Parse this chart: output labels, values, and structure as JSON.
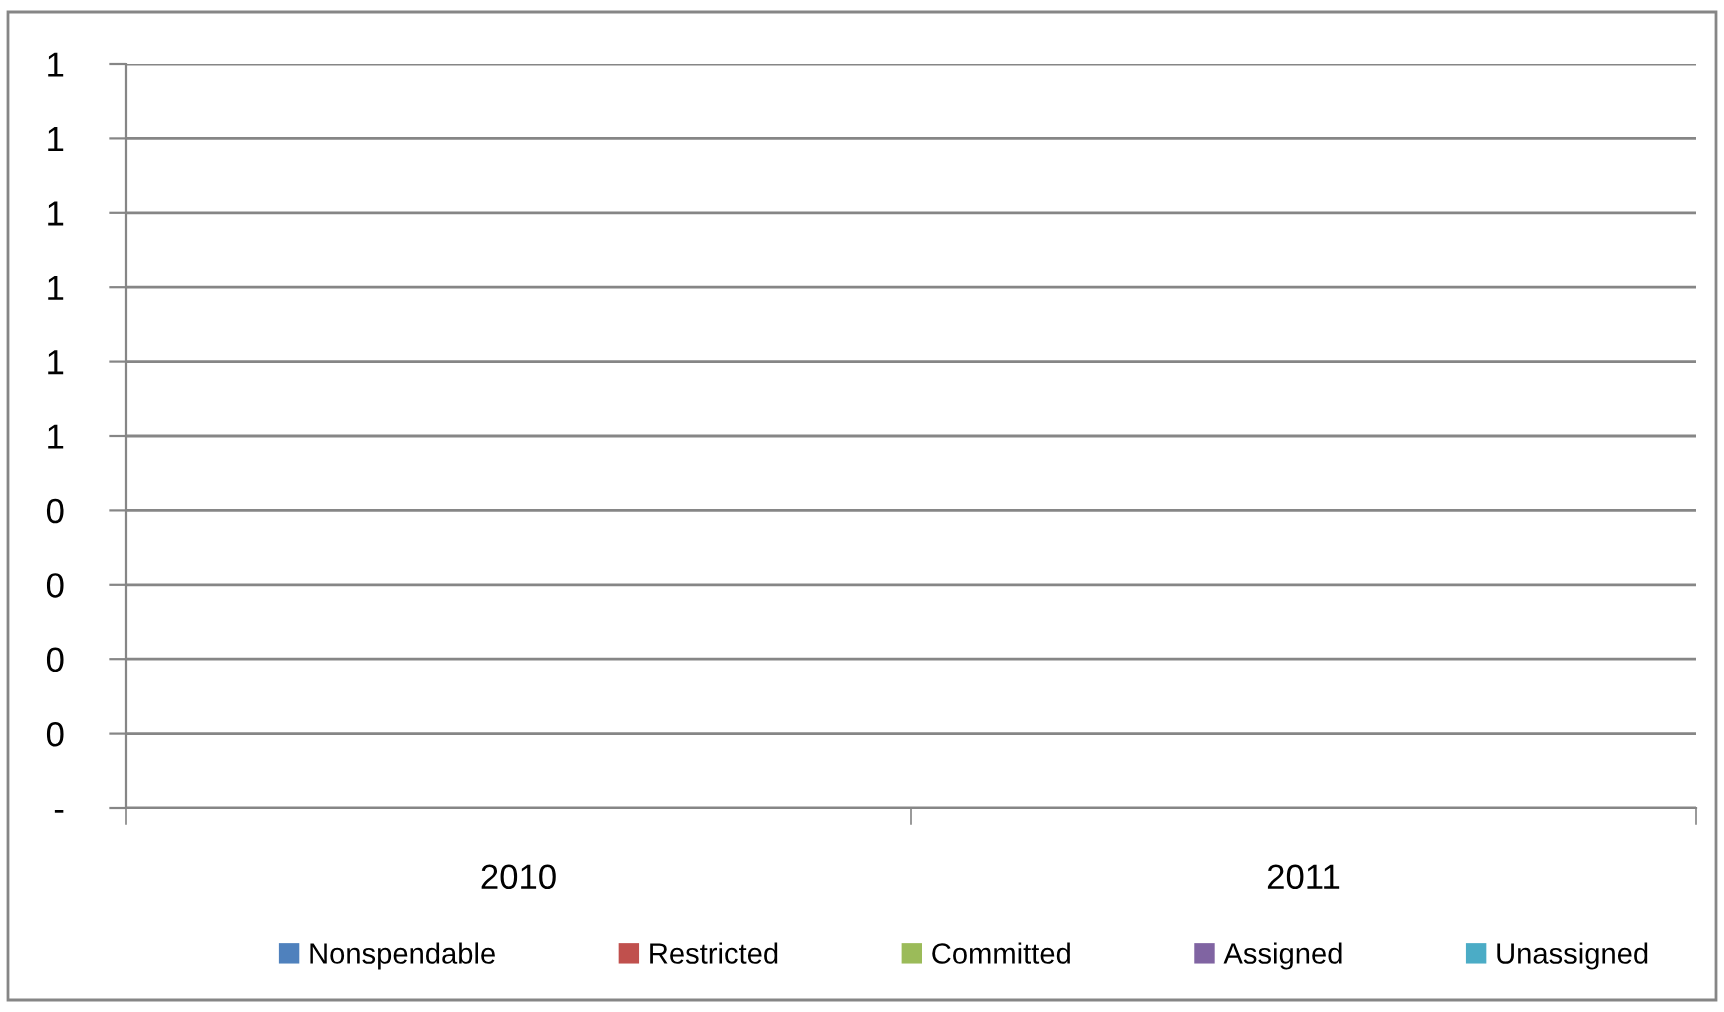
{
  "chart_data": {
    "type": "bar",
    "categories": [
      "2010",
      "2011"
    ],
    "series": [
      {
        "name": "Nonspendable",
        "color": "#4f81bd",
        "values": [
          null,
          null
        ]
      },
      {
        "name": "Restricted",
        "color": "#c0504d",
        "values": [
          null,
          null
        ]
      },
      {
        "name": "Committed",
        "color": "#9bbb59",
        "values": [
          null,
          null
        ]
      },
      {
        "name": "Assigned",
        "color": "#8064a2",
        "values": [
          null,
          null
        ]
      },
      {
        "name": "Unassigned",
        "color": "#4bacc6",
        "values": [
          null,
          null
        ]
      }
    ],
    "ylim": [
      0,
      1
    ],
    "yticks": [
      {
        "value": 0,
        "label": "-"
      },
      {
        "value": 0.1,
        "label": "0"
      },
      {
        "value": 0.2,
        "label": "0"
      },
      {
        "value": 0.3,
        "label": "0"
      },
      {
        "value": 0.4,
        "label": "0"
      },
      {
        "value": 0.5,
        "label": "1"
      },
      {
        "value": 0.6,
        "label": "1"
      },
      {
        "value": 0.7,
        "label": "1"
      },
      {
        "value": 0.8,
        "label": "1"
      },
      {
        "value": 0.9,
        "label": "1"
      },
      1
    ],
    "grid": "y",
    "legend": "bottom"
  }
}
